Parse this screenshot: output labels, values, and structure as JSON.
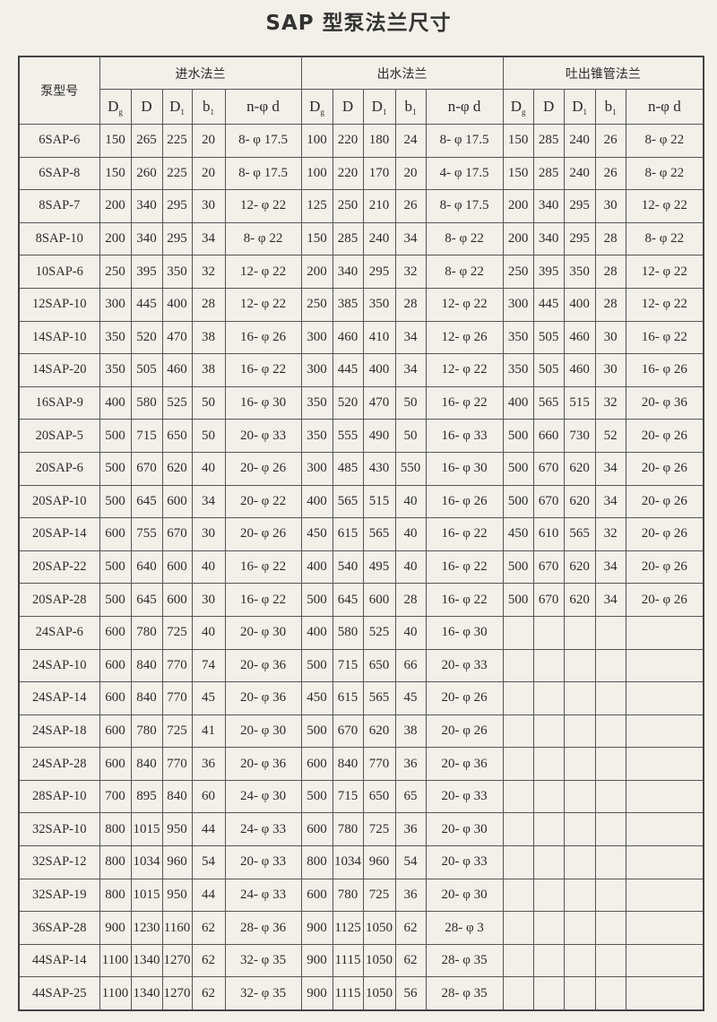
{
  "title": "SAP 型泵法兰尺寸",
  "header": {
    "model": "泵型号",
    "groups": [
      "进水法兰",
      "出水法兰",
      "吐出锥管法兰"
    ],
    "columns": [
      {
        "base": "D",
        "sub": "g"
      },
      {
        "base": "D",
        "sub": ""
      },
      {
        "base": "D",
        "sub": "1"
      },
      {
        "base": "b",
        "sub": "1"
      },
      {
        "base": "n-φ d",
        "sub": ""
      }
    ]
  },
  "rows": [
    {
      "model": "6SAP-6",
      "inlet": [
        "150",
        "265",
        "225",
        "20",
        "8- φ 17.5"
      ],
      "outlet": [
        "100",
        "220",
        "180",
        "24",
        "8- φ 17.5"
      ],
      "cone": [
        "150",
        "285",
        "240",
        "26",
        "8- φ 22"
      ]
    },
    {
      "model": "6SAP-8",
      "inlet": [
        "150",
        "260",
        "225",
        "20",
        "8- φ 17.5"
      ],
      "outlet": [
        "100",
        "220",
        "170",
        "20",
        "4- φ 17.5"
      ],
      "cone": [
        "150",
        "285",
        "240",
        "26",
        "8- φ 22"
      ]
    },
    {
      "model": "8SAP-7",
      "inlet": [
        "200",
        "340",
        "295",
        "30",
        "12- φ 22"
      ],
      "outlet": [
        "125",
        "250",
        "210",
        "26",
        "8- φ 17.5"
      ],
      "cone": [
        "200",
        "340",
        "295",
        "30",
        "12- φ 22"
      ]
    },
    {
      "model": "8SAP-10",
      "inlet": [
        "200",
        "340",
        "295",
        "34",
        "8- φ 22"
      ],
      "outlet": [
        "150",
        "285",
        "240",
        "34",
        "8- φ 22"
      ],
      "cone": [
        "200",
        "340",
        "295",
        "28",
        "8- φ 22"
      ]
    },
    {
      "model": "10SAP-6",
      "inlet": [
        "250",
        "395",
        "350",
        "32",
        "12- φ 22"
      ],
      "outlet": [
        "200",
        "340",
        "295",
        "32",
        "8- φ 22"
      ],
      "cone": [
        "250",
        "395",
        "350",
        "28",
        "12- φ 22"
      ]
    },
    {
      "model": "12SAP-10",
      "inlet": [
        "300",
        "445",
        "400",
        "28",
        "12- φ 22"
      ],
      "outlet": [
        "250",
        "385",
        "350",
        "28",
        "12- φ 22"
      ],
      "cone": [
        "300",
        "445",
        "400",
        "28",
        "12- φ 22"
      ]
    },
    {
      "model": "14SAP-10",
      "inlet": [
        "350",
        "520",
        "470",
        "38",
        "16- φ 26"
      ],
      "outlet": [
        "300",
        "460",
        "410",
        "34",
        "12- φ 26"
      ],
      "cone": [
        "350",
        "505",
        "460",
        "30",
        "16- φ 22"
      ]
    },
    {
      "model": "14SAP-20",
      "inlet": [
        "350",
        "505",
        "460",
        "38",
        "16- φ 22"
      ],
      "outlet": [
        "300",
        "445",
        "400",
        "34",
        "12- φ 22"
      ],
      "cone": [
        "350",
        "505",
        "460",
        "30",
        "16- φ 26"
      ]
    },
    {
      "model": "16SAP-9",
      "inlet": [
        "400",
        "580",
        "525",
        "50",
        "16- φ 30"
      ],
      "outlet": [
        "350",
        "520",
        "470",
        "50",
        "16- φ 22"
      ],
      "cone": [
        "400",
        "565",
        "515",
        "32",
        "20- φ 36"
      ]
    },
    {
      "model": "20SAP-5",
      "inlet": [
        "500",
        "715",
        "650",
        "50",
        "20- φ 33"
      ],
      "outlet": [
        "350",
        "555",
        "490",
        "50",
        "16- φ 33"
      ],
      "cone": [
        "500",
        "660",
        "730",
        "52",
        "20- φ 26"
      ]
    },
    {
      "model": "20SAP-6",
      "inlet": [
        "500",
        "670",
        "620",
        "40",
        "20- φ 26"
      ],
      "outlet": [
        "300",
        "485",
        "430",
        "550",
        "16- φ 30"
      ],
      "cone": [
        "500",
        "670",
        "620",
        "34",
        "20- φ 26"
      ]
    },
    {
      "model": "20SAP-10",
      "inlet": [
        "500",
        "645",
        "600",
        "34",
        "20- φ 22"
      ],
      "outlet": [
        "400",
        "565",
        "515",
        "40",
        "16- φ 26"
      ],
      "cone": [
        "500",
        "670",
        "620",
        "34",
        "20- φ 26"
      ]
    },
    {
      "model": "20SAP-14",
      "inlet": [
        "600",
        "755",
        "670",
        "30",
        "20- φ 26"
      ],
      "outlet": [
        "450",
        "615",
        "565",
        "40",
        "16- φ 22"
      ],
      "cone": [
        "450",
        "610",
        "565",
        "32",
        "20- φ 26"
      ]
    },
    {
      "model": "20SAP-22",
      "inlet": [
        "500",
        "640",
        "600",
        "40",
        "16- φ 22"
      ],
      "outlet": [
        "400",
        "540",
        "495",
        "40",
        "16- φ 22"
      ],
      "cone": [
        "500",
        "670",
        "620",
        "34",
        "20- φ 26"
      ]
    },
    {
      "model": "20SAP-28",
      "inlet": [
        "500",
        "645",
        "600",
        "30",
        "16- φ 22"
      ],
      "outlet": [
        "500",
        "645",
        "600",
        "28",
        "16- φ 22"
      ],
      "cone": [
        "500",
        "670",
        "620",
        "34",
        "20- φ 26"
      ]
    },
    {
      "model": "24SAP-6",
      "inlet": [
        "600",
        "780",
        "725",
        "40",
        "20- φ 30"
      ],
      "outlet": [
        "400",
        "580",
        "525",
        "40",
        "16- φ 30"
      ],
      "cone": [
        "",
        "",
        "",
        "",
        ""
      ]
    },
    {
      "model": "24SAP-10",
      "inlet": [
        "600",
        "840",
        "770",
        "74",
        "20- φ 36"
      ],
      "outlet": [
        "500",
        "715",
        "650",
        "66",
        "20- φ 33"
      ],
      "cone": [
        "",
        "",
        "",
        "",
        ""
      ]
    },
    {
      "model": "24SAP-14",
      "inlet": [
        "600",
        "840",
        "770",
        "45",
        "20- φ 36"
      ],
      "outlet": [
        "450",
        "615",
        "565",
        "45",
        "20- φ 26"
      ],
      "cone": [
        "",
        "",
        "",
        "",
        ""
      ]
    },
    {
      "model": "24SAP-18",
      "inlet": [
        "600",
        "780",
        "725",
        "41",
        "20- φ 30"
      ],
      "outlet": [
        "500",
        "670",
        "620",
        "38",
        "20- φ 26"
      ],
      "cone": [
        "",
        "",
        "",
        "",
        ""
      ]
    },
    {
      "model": "24SAP-28",
      "inlet": [
        "600",
        "840",
        "770",
        "36",
        "20- φ 36"
      ],
      "outlet": [
        "600",
        "840",
        "770",
        "36",
        "20- φ 36"
      ],
      "cone": [
        "",
        "",
        "",
        "",
        ""
      ]
    },
    {
      "model": "28SAP-10",
      "inlet": [
        "700",
        "895",
        "840",
        "60",
        "24- φ 30"
      ],
      "outlet": [
        "500",
        "715",
        "650",
        "65",
        "20- φ 33"
      ],
      "cone": [
        "",
        "",
        "",
        "",
        ""
      ]
    },
    {
      "model": "32SAP-10",
      "inlet": [
        "800",
        "1015",
        "950",
        "44",
        "24- φ 33"
      ],
      "outlet": [
        "600",
        "780",
        "725",
        "36",
        "20- φ 30"
      ],
      "cone": [
        "",
        "",
        "",
        "",
        ""
      ]
    },
    {
      "model": "32SAP-12",
      "inlet": [
        "800",
        "1034",
        "960",
        "54",
        "20- φ 33"
      ],
      "outlet": [
        "800",
        "1034",
        "960",
        "54",
        "20- φ 33"
      ],
      "cone": [
        "",
        "",
        "",
        "",
        ""
      ]
    },
    {
      "model": "32SAP-19",
      "inlet": [
        "800",
        "1015",
        "950",
        "44",
        "24- φ 33"
      ],
      "outlet": [
        "600",
        "780",
        "725",
        "36",
        "20- φ 30"
      ],
      "cone": [
        "",
        "",
        "",
        "",
        ""
      ]
    },
    {
      "model": "36SAP-28",
      "inlet": [
        "900",
        "1230",
        "1160",
        "62",
        "28- φ 36"
      ],
      "outlet": [
        "900",
        "1125",
        "1050",
        "62",
        "28- φ 3"
      ],
      "cone": [
        "",
        "",
        "",
        "",
        ""
      ]
    },
    {
      "model": "44SAP-14",
      "inlet": [
        "1100",
        "1340",
        "1270",
        "62",
        "32- φ 35"
      ],
      "outlet": [
        "900",
        "1115",
        "1050",
        "62",
        "28- φ 35"
      ],
      "cone": [
        "",
        "",
        "",
        "",
        ""
      ]
    },
    {
      "model": "44SAP-25",
      "inlet": [
        "1100",
        "1340",
        "1270",
        "62",
        "32- φ 35"
      ],
      "outlet": [
        "900",
        "1115",
        "1050",
        "56",
        "28- φ 35"
      ],
      "cone": [
        "",
        "",
        "",
        "",
        ""
      ]
    }
  ]
}
